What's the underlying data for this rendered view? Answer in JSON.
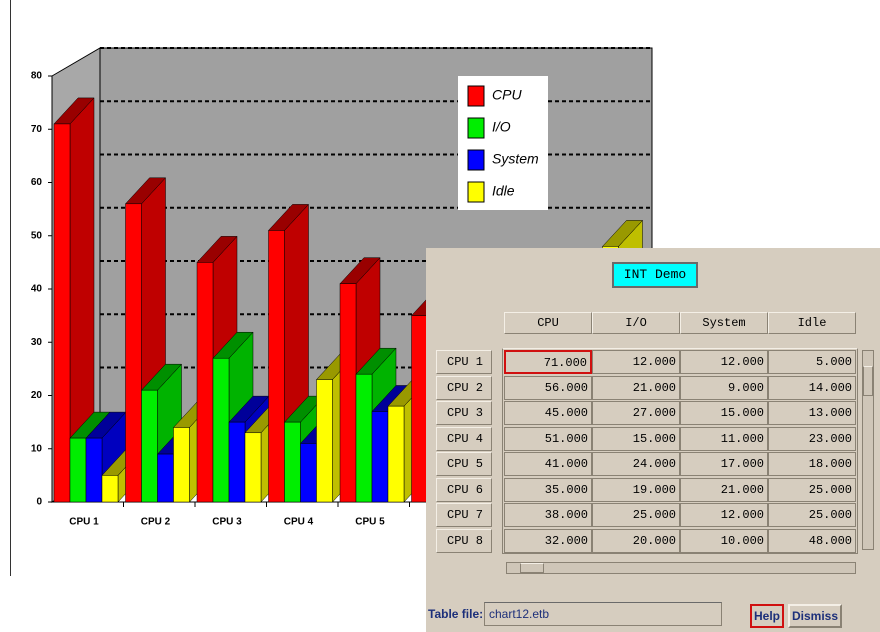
{
  "chart_data": {
    "type": "bar",
    "categories": [
      "CPU 1",
      "CPU 2",
      "CPU 3",
      "CPU 4",
      "CPU 5",
      "CPU 6",
      "CPU 7",
      "CPU 8"
    ],
    "series": [
      {
        "name": "CPU",
        "color": "#ff0000",
        "values": [
          71,
          56,
          45,
          51,
          41,
          35,
          38,
          32
        ]
      },
      {
        "name": "I/O",
        "color": "#00ee00",
        "values": [
          12,
          21,
          27,
          15,
          24,
          19,
          25,
          20
        ]
      },
      {
        "name": "System",
        "color": "#0000ff",
        "values": [
          12,
          9,
          15,
          11,
          17,
          21,
          12,
          10
        ]
      },
      {
        "name": "Idle",
        "color": "#ffff00",
        "values": [
          5,
          14,
          13,
          23,
          18,
          25,
          25,
          48
        ]
      }
    ],
    "ylim": [
      0,
      80
    ],
    "yticks": [
      0,
      10,
      20,
      30,
      40,
      50,
      60,
      70,
      80
    ],
    "grid": true,
    "legend": "upper-right"
  },
  "dialog": {
    "title": "INT Demo",
    "columns": [
      "CPU",
      "I/O",
      "System",
      "Idle"
    ],
    "rows": [
      {
        "label": "CPU 1",
        "cells": [
          "71.000",
          "12.000",
          "12.000",
          "5.000"
        ]
      },
      {
        "label": "CPU 2",
        "cells": [
          "56.000",
          "21.000",
          "9.000",
          "14.000"
        ]
      },
      {
        "label": "CPU 3",
        "cells": [
          "45.000",
          "27.000",
          "15.000",
          "13.000"
        ]
      },
      {
        "label": "CPU 4",
        "cells": [
          "51.000",
          "15.000",
          "11.000",
          "23.000"
        ]
      },
      {
        "label": "CPU 5",
        "cells": [
          "41.000",
          "24.000",
          "17.000",
          "18.000"
        ]
      },
      {
        "label": "CPU 6",
        "cells": [
          "35.000",
          "19.000",
          "21.000",
          "25.000"
        ]
      },
      {
        "label": "CPU 7",
        "cells": [
          "38.000",
          "25.000",
          "12.000",
          "25.000"
        ]
      },
      {
        "label": "CPU 8",
        "cells": [
          "32.000",
          "20.000",
          "10.000",
          "48.000"
        ]
      }
    ],
    "file_label": "Table file:",
    "file": "chart12.etb",
    "buttons": [
      "Help",
      "Dismiss"
    ]
  }
}
